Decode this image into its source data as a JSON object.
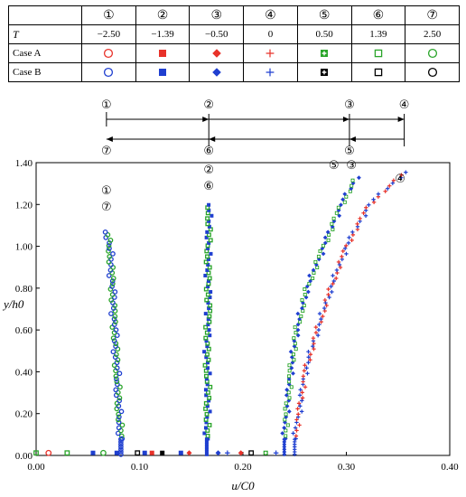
{
  "table": {
    "header_symbols": [
      "①",
      "②",
      "③",
      "④",
      "⑤",
      "⑥",
      "⑦"
    ],
    "t_label": "T",
    "t_values": [
      "−2.50",
      "−1.39",
      "−0.50",
      "0",
      "0.50",
      "1.39",
      "2.50"
    ],
    "case_a_label": "Case A",
    "case_b_label": "Case B",
    "case_a_markers": [
      {
        "shape": "circle",
        "color": "#e8322a"
      },
      {
        "shape": "square-filled",
        "color": "#e8322a"
      },
      {
        "shape": "diamond-filled",
        "color": "#e8322a"
      },
      {
        "shape": "plus",
        "color": "#e8322a"
      },
      {
        "shape": "square-cross",
        "color": "#2aa52a"
      },
      {
        "shape": "square",
        "color": "#2aa52a"
      },
      {
        "shape": "circle",
        "color": "#2aa52a"
      }
    ],
    "case_b_markers": [
      {
        "shape": "circle",
        "color": "#1f3fd0"
      },
      {
        "shape": "square-filled",
        "color": "#1f3fd0"
      },
      {
        "shape": "diamond-filled",
        "color": "#1f3fd0"
      },
      {
        "shape": "plus",
        "color": "#1f3fd0"
      },
      {
        "shape": "square-cross",
        "color": "#000000"
      },
      {
        "shape": "square",
        "color": "#000000"
      },
      {
        "shape": "circle",
        "color": "#000000"
      }
    ]
  },
  "chart_data": {
    "type": "scatter",
    "xlabel": "u/C0",
    "ylabel": "y/h0",
    "xlim": [
      0.0,
      0.4
    ],
    "ylim": [
      0.0,
      1.4
    ],
    "xticks": [
      "0.00",
      "0.10",
      "0.20",
      "0.30",
      "0.40"
    ],
    "yticks": [
      "0.00",
      "0.20",
      "0.40",
      "0.60",
      "0.80",
      "1.00",
      "1.20",
      "1.40"
    ],
    "grid": false,
    "profiles": [
      {
        "labels": [
          "①",
          "⑦"
        ],
        "base_x": 0.082,
        "top": 1.08,
        "curve": [
          [
            0.0,
            0.082
          ],
          [
            0.08,
            0.082
          ],
          [
            0.2,
            0.08
          ],
          [
            0.5,
            0.077
          ],
          [
            0.8,
            0.074
          ],
          [
            1.0,
            0.071
          ],
          [
            1.08,
            0.068
          ]
        ]
      },
      {
        "labels": [
          "②",
          "⑥"
        ],
        "base_x": 0.165,
        "top": 1.2,
        "curve": [
          [
            0.0,
            0.165
          ],
          [
            0.1,
            0.165
          ],
          [
            0.3,
            0.166
          ],
          [
            0.5,
            0.165
          ],
          [
            0.7,
            0.167
          ],
          [
            0.9,
            0.166
          ],
          [
            1.1,
            0.167
          ],
          [
            1.2,
            0.167
          ]
        ]
      },
      {
        "labels": [
          "⑤",
          "③"
        ],
        "base_x": 0.24,
        "top": 1.33,
        "curve": [
          [
            0.0,
            0.24
          ],
          [
            0.08,
            0.24
          ],
          [
            0.2,
            0.242
          ],
          [
            0.4,
            0.246
          ],
          [
            0.6,
            0.252
          ],
          [
            0.8,
            0.262
          ],
          [
            1.0,
            0.278
          ],
          [
            1.2,
            0.295
          ],
          [
            1.33,
            0.31
          ]
        ]
      },
      {
        "labels": [
          "④"
        ],
        "base_x": 0.25,
        "top": 1.36,
        "curve": [
          [
            0.0,
            0.25
          ],
          [
            0.08,
            0.25
          ],
          [
            0.2,
            0.254
          ],
          [
            0.4,
            0.26
          ],
          [
            0.6,
            0.272
          ],
          [
            0.8,
            0.285
          ],
          [
            1.0,
            0.3
          ],
          [
            1.2,
            0.322
          ],
          [
            1.36,
            0.358
          ]
        ]
      }
    ],
    "bottom_points": [
      {
        "x": 0.0,
        "color": "#2aa52a",
        "shape": "square"
      },
      {
        "x": 0.012,
        "color": "#e8322a",
        "shape": "circle"
      },
      {
        "x": 0.03,
        "color": "#2aa52a",
        "shape": "square"
      },
      {
        "x": 0.055,
        "color": "#1f3fd0",
        "shape": "square-filled"
      },
      {
        "x": 0.065,
        "color": "#2aa52a",
        "shape": "circle"
      },
      {
        "x": 0.078,
        "color": "#1f3fd0",
        "shape": "square-filled"
      },
      {
        "x": 0.098,
        "color": "#000000",
        "shape": "square"
      },
      {
        "x": 0.105,
        "color": "#1f3fd0",
        "shape": "square-filled"
      },
      {
        "x": 0.112,
        "color": "#e8322a",
        "shape": "square-filled"
      },
      {
        "x": 0.122,
        "color": "#000000",
        "shape": "square-filled"
      },
      {
        "x": 0.14,
        "color": "#1f3fd0",
        "shape": "square-filled"
      },
      {
        "x": 0.148,
        "color": "#e8322a",
        "shape": "diamond-filled"
      },
      {
        "x": 0.176,
        "color": "#1f3fd0",
        "shape": "diamond-filled"
      },
      {
        "x": 0.185,
        "color": "#1f3fd0",
        "shape": "plus"
      },
      {
        "x": 0.198,
        "color": "#e8322a",
        "shape": "diamond-filled"
      },
      {
        "x": 0.208,
        "color": "#000000",
        "shape": "square"
      },
      {
        "x": 0.222,
        "color": "#2aa52a",
        "shape": "square-cross"
      },
      {
        "x": 0.232,
        "color": "#1f3fd0",
        "shape": "plus"
      }
    ],
    "annotations": {
      "top_row": [
        "①",
        "②",
        "③",
        "④"
      ],
      "bottom_row": [
        "⑦",
        "⑥",
        "⑤"
      ]
    }
  }
}
